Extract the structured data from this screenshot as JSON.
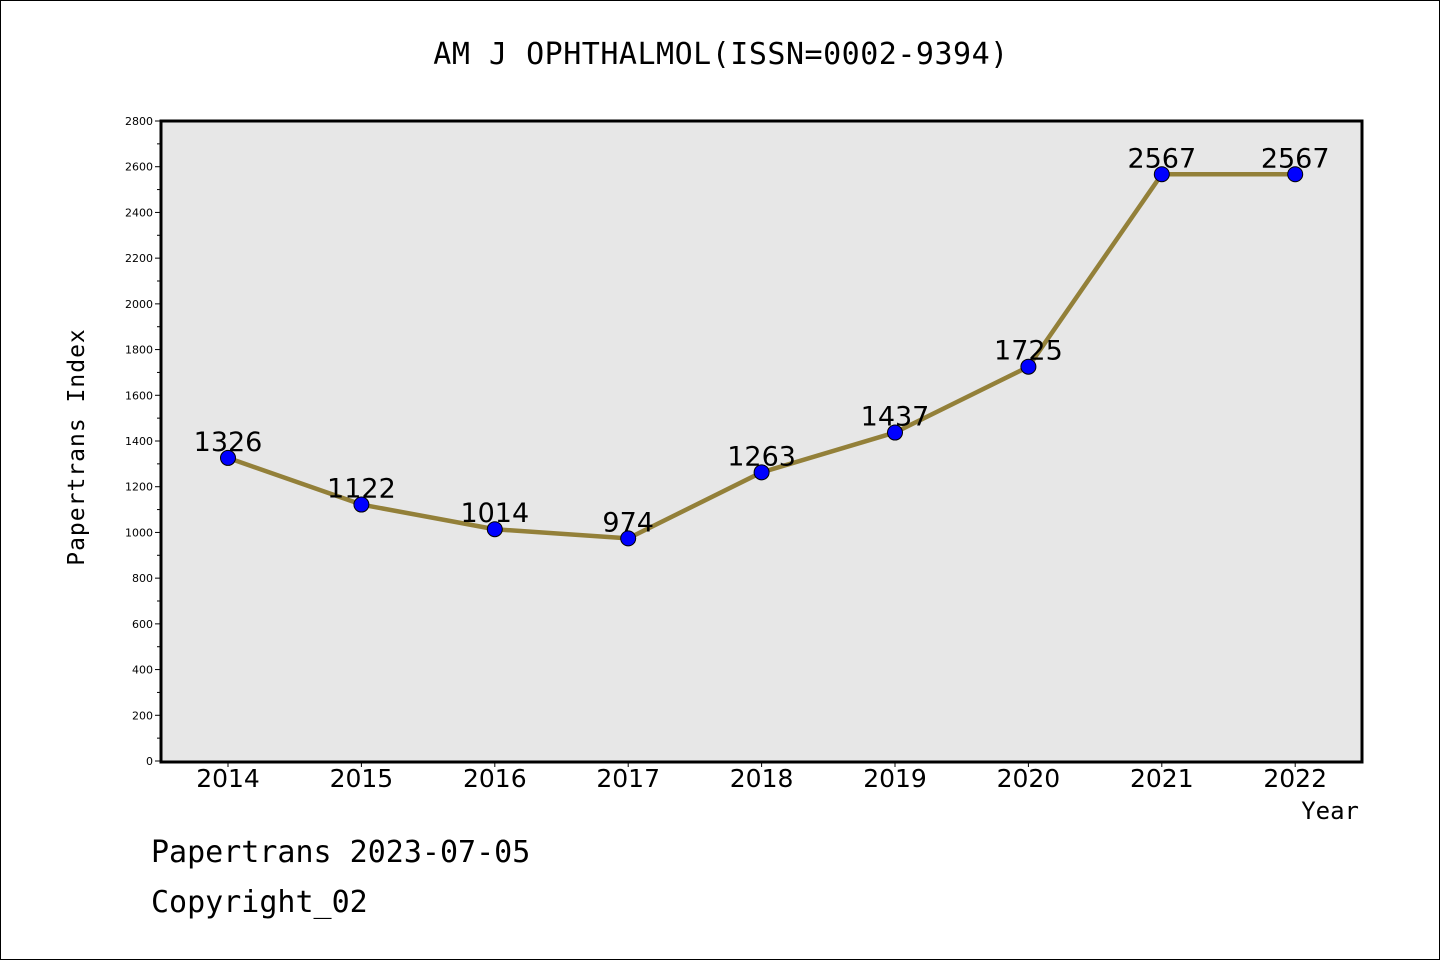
{
  "chart_data": {
    "type": "line",
    "title": "AM J OPHTHALMOL(ISSN=0002-9394)",
    "xlabel": "Year",
    "ylabel": "Papertrans Index",
    "categories": [
      "2014",
      "2015",
      "2016",
      "2017",
      "2018",
      "2019",
      "2020",
      "2021",
      "2022"
    ],
    "values": [
      1326,
      1122,
      1014,
      974,
      1263,
      1437,
      1725,
      2567,
      2567
    ],
    "ylim": [
      0,
      2800
    ],
    "yticks": [
      0,
      200,
      400,
      600,
      800,
      1000,
      1200,
      1400,
      1600,
      1800,
      2000,
      2200,
      2400,
      2600,
      2800
    ],
    "grid": false,
    "colors": {
      "line": "#938039",
      "marker": "#0000ff",
      "plot_background": "#e7e7e7"
    }
  },
  "footer": {
    "date_text": "Papertrans 2023-07-05",
    "copyright_text": "Copyright_02"
  }
}
